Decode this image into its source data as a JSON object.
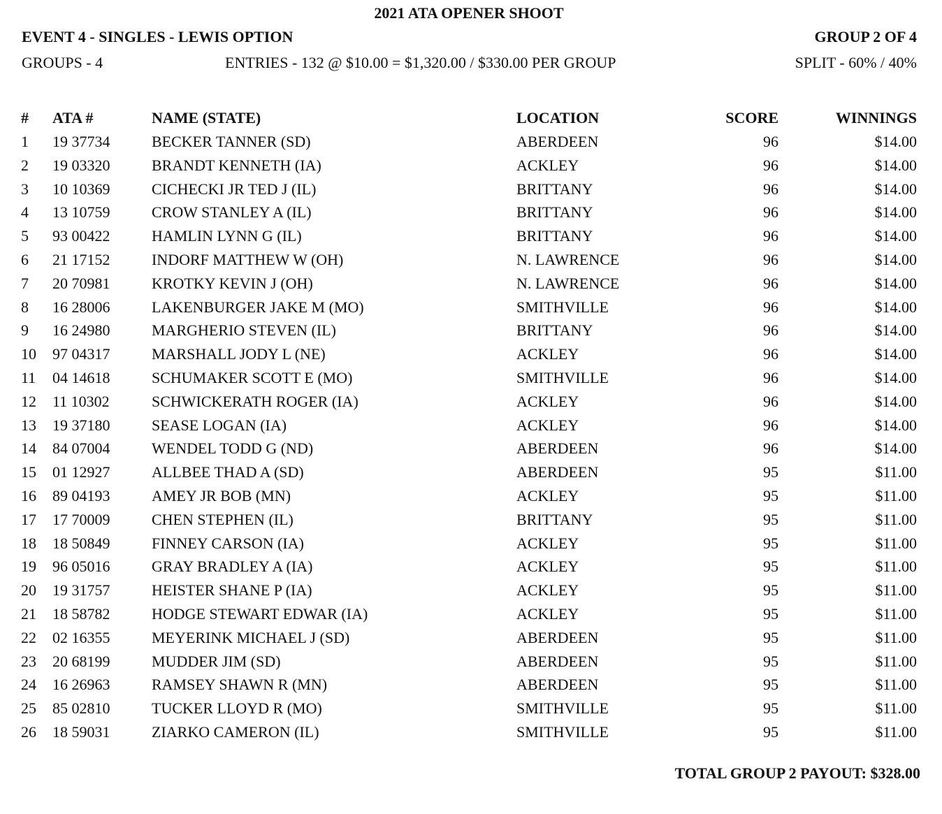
{
  "header": {
    "title": "2021 ATA OPENER SHOOT",
    "event": "EVENT 4 - SINGLES - LEWIS OPTION",
    "group": "GROUP 2 OF 4",
    "groups": "GROUPS - 4",
    "entries": "ENTRIES - 132 @ $10.00 = $1,320.00 / $330.00 PER GROUP",
    "split": "SPLIT - 60% / 40%"
  },
  "table": {
    "columns": [
      "#",
      "ATA #",
      "NAME (STATE)",
      "LOCATION",
      "SCORE",
      "WINNINGS"
    ],
    "rows": [
      [
        "1",
        "19 37734",
        "BECKER TANNER (SD)",
        "ABERDEEN",
        "96",
        "$14.00"
      ],
      [
        "2",
        "19 03320",
        "BRANDT KENNETH (IA)",
        "ACKLEY",
        "96",
        "$14.00"
      ],
      [
        "3",
        "10 10369",
        "CICHECKI JR TED J (IL)",
        "BRITTANY",
        "96",
        "$14.00"
      ],
      [
        "4",
        "13 10759",
        "CROW STANLEY A (IL)",
        "BRITTANY",
        "96",
        "$14.00"
      ],
      [
        "5",
        "93 00422",
        "HAMLIN LYNN G (IL)",
        "BRITTANY",
        "96",
        "$14.00"
      ],
      [
        "6",
        "21 17152",
        "INDORF MATTHEW W (OH)",
        "N. LAWRENCE",
        "96",
        "$14.00"
      ],
      [
        "7",
        "20 70981",
        "KROTKY KEVIN J (OH)",
        "N. LAWRENCE",
        "96",
        "$14.00"
      ],
      [
        "8",
        "16 28006",
        "LAKENBURGER JAKE M (MO)",
        "SMITHVILLE",
        "96",
        "$14.00"
      ],
      [
        "9",
        "16 24980",
        "MARGHERIO STEVEN (IL)",
        "BRITTANY",
        "96",
        "$14.00"
      ],
      [
        "10",
        "97 04317",
        "MARSHALL JODY L (NE)",
        "ACKLEY",
        "96",
        "$14.00"
      ],
      [
        "11",
        "04 14618",
        "SCHUMAKER SCOTT E (MO)",
        "SMITHVILLE",
        "96",
        "$14.00"
      ],
      [
        "12",
        "11 10302",
        "SCHWICKERATH ROGER (IA)",
        "ACKLEY",
        "96",
        "$14.00"
      ],
      [
        "13",
        "19 37180",
        "SEASE LOGAN (IA)",
        "ACKLEY",
        "96",
        "$14.00"
      ],
      [
        "14",
        "84 07004",
        "WENDEL TODD G (ND)",
        "ABERDEEN",
        "96",
        "$14.00"
      ],
      [
        "15",
        "01 12927",
        "ALLBEE THAD A (SD)",
        "ABERDEEN",
        "95",
        "$11.00"
      ],
      [
        "16",
        "89 04193",
        "AMEY JR BOB (MN)",
        "ACKLEY",
        "95",
        "$11.00"
      ],
      [
        "17",
        "17 70009",
        "CHEN STEPHEN (IL)",
        "BRITTANY",
        "95",
        "$11.00"
      ],
      [
        "18",
        "18 50849",
        "FINNEY CARSON (IA)",
        "ACKLEY",
        "95",
        "$11.00"
      ],
      [
        "19",
        "96 05016",
        "GRAY BRADLEY A (IA)",
        "ACKLEY",
        "95",
        "$11.00"
      ],
      [
        "20",
        "19 31757",
        "HEISTER SHANE P (IA)",
        "ACKLEY",
        "95",
        "$11.00"
      ],
      [
        "21",
        "18 58782",
        "HODGE STEWART EDWAR (IA)",
        "ACKLEY",
        "95",
        "$11.00"
      ],
      [
        "22",
        "02 16355",
        "MEYERINK MICHAEL J (SD)",
        "ABERDEEN",
        "95",
        "$11.00"
      ],
      [
        "23",
        "20 68199",
        "MUDDER JIM (SD)",
        "ABERDEEN",
        "95",
        "$11.00"
      ],
      [
        "24",
        "16 26963",
        "RAMSEY SHAWN R (MN)",
        "ABERDEEN",
        "95",
        "$11.00"
      ],
      [
        "25",
        "85 02810",
        "TUCKER LLOYD R (MO)",
        "SMITHVILLE",
        "95",
        "$11.00"
      ],
      [
        "26",
        "18 59031",
        "ZIARKO CAMERON (IL)",
        "SMITHVILLE",
        "95",
        "$11.00"
      ]
    ]
  },
  "footer": {
    "total": "TOTAL GROUP 2 PAYOUT: $328.00"
  }
}
